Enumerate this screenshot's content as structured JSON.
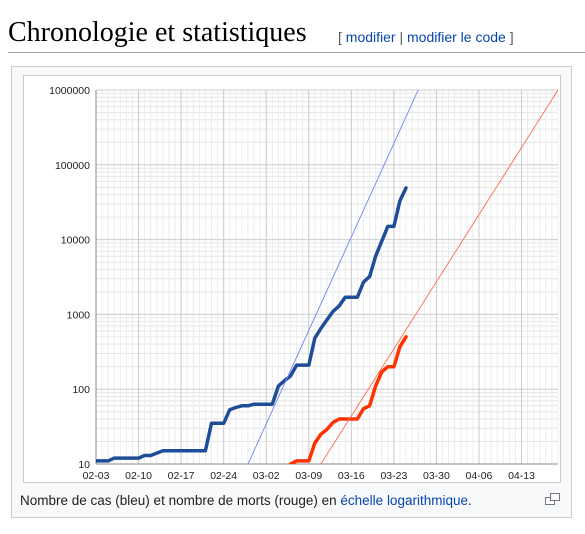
{
  "section": {
    "title": "Chronologie et statistiques",
    "open_bracket": "[",
    "edit_label": "modifier",
    "separator": "|",
    "edit_source_label": "modifier le code",
    "close_bracket": "]"
  },
  "figure": {
    "caption_before": "Nombre de cas (bleu) et nombre de morts (rouge) en ",
    "caption_link": "échelle logarithmique",
    "caption_after": ".",
    "magnify_icon": "magnify-clip-icon"
  },
  "chart_data": {
    "type": "line",
    "y_scale": "log",
    "ylim": [
      10,
      1000000
    ],
    "yticks": [
      10,
      100,
      1000,
      10000,
      100000,
      1000000
    ],
    "ytick_labels": [
      "10",
      "100",
      "1000",
      "10000",
      "100000",
      "1000000"
    ],
    "xlim": [
      "2020-02-03",
      "2020-04-19"
    ],
    "xticks": [
      "2020-02-03",
      "2020-02-10",
      "2020-02-17",
      "2020-02-24",
      "2020-03-02",
      "2020-03-09",
      "2020-03-16",
      "2020-03-23",
      "2020-03-30",
      "2020-04-06",
      "2020-04-13"
    ],
    "xtick_labels": [
      "02-03",
      "02-10",
      "02-17",
      "02-24",
      "03-02",
      "03-09",
      "03-16",
      "03-23",
      "03-30",
      "04-06",
      "04-13"
    ],
    "grid": true,
    "colors": {
      "cases": "#1f4e99",
      "deaths": "#ff3300",
      "cases_trend": "#6f86f2",
      "deaths_trend": "#ff6a4d",
      "grid": "#cccccc"
    },
    "series": [
      {
        "kind": "cases",
        "x": [
          "2020-02-03",
          "2020-02-05",
          "2020-02-06",
          "2020-02-10",
          "2020-02-11",
          "2020-02-12",
          "2020-02-13",
          "2020-02-14",
          "2020-02-15",
          "2020-02-21",
          "2020-02-22",
          "2020-02-24",
          "2020-02-25",
          "2020-02-26",
          "2020-02-27",
          "2020-02-28",
          "2020-02-29",
          "2020-03-01",
          "2020-03-03",
          "2020-03-04",
          "2020-03-05",
          "2020-03-06",
          "2020-03-07",
          "2020-03-08",
          "2020-03-09",
          "2020-03-10",
          "2020-03-11",
          "2020-03-12",
          "2020-03-13",
          "2020-03-14",
          "2020-03-15",
          "2020-03-16",
          "2020-03-17",
          "2020-03-18",
          "2020-03-19",
          "2020-03-20",
          "2020-03-21",
          "2020-03-22",
          "2020-03-23",
          "2020-03-24",
          "2020-03-25"
        ],
        "y": [
          11,
          11,
          12,
          12,
          13,
          13,
          14,
          15,
          15,
          15,
          35,
          35,
          53,
          57,
          60,
          60,
          63,
          63,
          63,
          110,
          130,
          150,
          210,
          210,
          210,
          480,
          650,
          850,
          1100,
          1300,
          1700,
          1700,
          1700,
          2700,
          3200,
          6000,
          9500,
          15000,
          15000,
          33000,
          49000
        ]
      },
      {
        "kind": "deaths",
        "x": [
          "2020-03-06",
          "2020-03-07",
          "2020-03-08",
          "2020-03-09",
          "2020-03-10",
          "2020-03-11",
          "2020-03-12",
          "2020-03-13",
          "2020-03-14",
          "2020-03-15",
          "2020-03-16",
          "2020-03-17",
          "2020-03-18",
          "2020-03-19",
          "2020-03-20",
          "2020-03-21",
          "2020-03-22",
          "2020-03-23",
          "2020-03-24",
          "2020-03-25"
        ],
        "y": [
          10,
          11,
          11,
          11,
          19,
          25,
          29,
          36,
          40,
          40,
          40,
          40,
          55,
          60,
          110,
          170,
          200,
          200,
          370,
          500
        ]
      },
      {
        "kind": "cases_trend",
        "x": [
          "2020-02-28",
          "2020-03-27"
        ],
        "y": [
          10,
          1000000
        ]
      },
      {
        "kind": "deaths_trend",
        "x": [
          "2020-03-11",
          "2020-04-19"
        ],
        "y": [
          10,
          1000000
        ]
      }
    ]
  }
}
